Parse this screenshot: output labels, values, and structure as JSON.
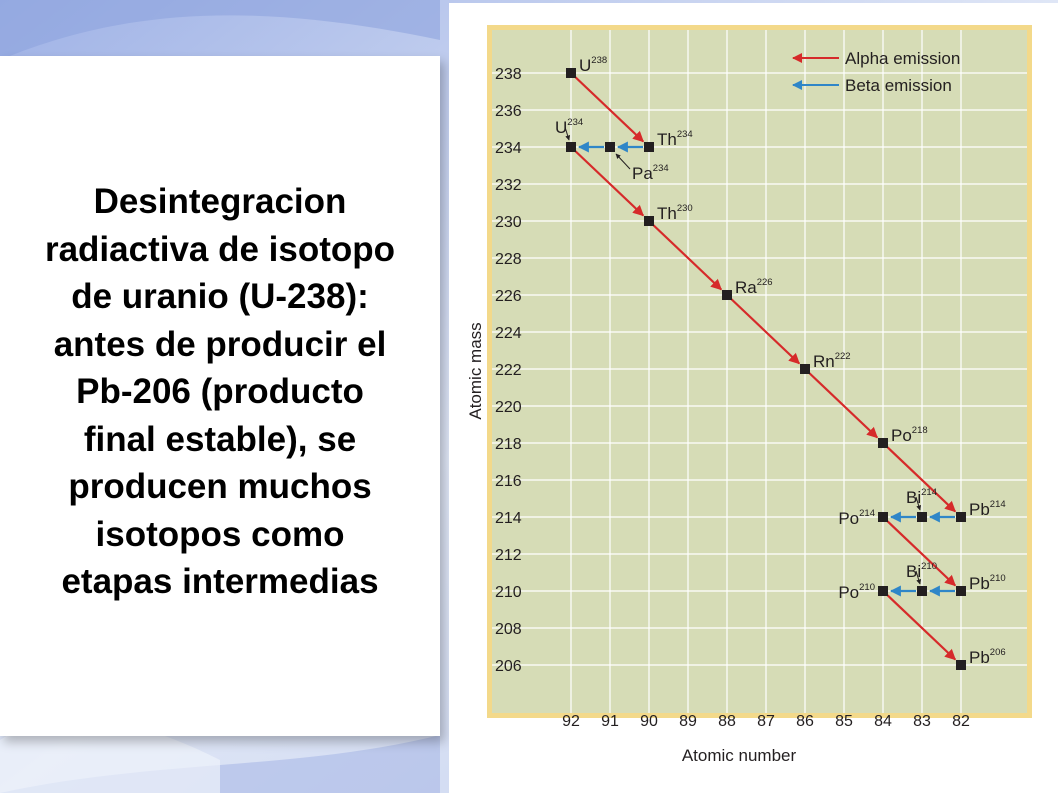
{
  "slide_text": {
    "lines": [
      "Desintegracion",
      "radiactiva de isotopo",
      "de uranio (U-238):",
      "antes de producir el",
      "Pb-206 (producto",
      "final estable), se",
      "producen muchos",
      "isotopos como",
      "etapas intermedias"
    ]
  },
  "diagram": {
    "y_axis_label": "Atomic mass",
    "x_axis_label": "Atomic number",
    "y_ticks": [
      "238",
      "236",
      "234",
      "232",
      "230",
      "228",
      "226",
      "224",
      "222",
      "220",
      "218",
      "216",
      "214",
      "212",
      "210",
      "208",
      "206"
    ],
    "x_ticks": [
      "92",
      "91",
      "90",
      "89",
      "88",
      "87",
      "86",
      "85",
      "84",
      "83",
      "82"
    ],
    "legend": {
      "alpha": "Alpha emission",
      "beta": "Beta emission"
    },
    "colors": {
      "alpha": "#d62a2a",
      "beta": "#2f86c8",
      "plot_bg": "#d6dcb6",
      "grid": "#ffffff",
      "node": "#231f20",
      "frame": "#f3d98a"
    },
    "nuclides": [
      {
        "id": "u238",
        "z": 92,
        "a": 238,
        "symbol": "U",
        "mass": "238",
        "label_side": "right"
      },
      {
        "id": "th234",
        "z": 90,
        "a": 234,
        "symbol": "Th",
        "mass": "234",
        "label_side": "right"
      },
      {
        "id": "pa234",
        "z": 91,
        "a": 234,
        "symbol": "Pa",
        "mass": "234",
        "label_side": "below"
      },
      {
        "id": "u234",
        "z": 92,
        "a": 234,
        "symbol": "U",
        "mass": "234",
        "label_side": "above"
      },
      {
        "id": "th230",
        "z": 90,
        "a": 230,
        "symbol": "Th",
        "mass": "230",
        "label_side": "right"
      },
      {
        "id": "ra226",
        "z": 88,
        "a": 226,
        "symbol": "Ra",
        "mass": "226",
        "label_side": "right"
      },
      {
        "id": "rn222",
        "z": 86,
        "a": 222,
        "symbol": "Rn",
        "mass": "222",
        "label_side": "right"
      },
      {
        "id": "po218",
        "z": 84,
        "a": 218,
        "symbol": "Po",
        "mass": "218",
        "label_side": "right"
      },
      {
        "id": "pb214",
        "z": 82,
        "a": 214,
        "symbol": "Pb",
        "mass": "214",
        "label_side": "right"
      },
      {
        "id": "bi214",
        "z": 83,
        "a": 214,
        "symbol": "Bi",
        "mass": "214",
        "label_side": "above"
      },
      {
        "id": "po214",
        "z": 84,
        "a": 214,
        "symbol": "Po",
        "mass": "214",
        "label_side": "left"
      },
      {
        "id": "pb210",
        "z": 82,
        "a": 210,
        "symbol": "Pb",
        "mass": "210",
        "label_side": "right"
      },
      {
        "id": "bi210",
        "z": 83,
        "a": 210,
        "symbol": "Bi",
        "mass": "210",
        "label_side": "above"
      },
      {
        "id": "po210",
        "z": 84,
        "a": 210,
        "symbol": "Po",
        "mass": "210",
        "label_side": "left"
      },
      {
        "id": "pb206",
        "z": 82,
        "a": 206,
        "symbol": "Pb",
        "mass": "206",
        "label_side": "right"
      }
    ],
    "decays": [
      {
        "from": "u238",
        "to": "th234",
        "type": "alpha"
      },
      {
        "from": "th234",
        "to": "pa234",
        "type": "beta"
      },
      {
        "from": "pa234",
        "to": "u234",
        "type": "beta"
      },
      {
        "from": "u234",
        "to": "th230",
        "type": "alpha"
      },
      {
        "from": "th230",
        "to": "ra226",
        "type": "alpha"
      },
      {
        "from": "ra226",
        "to": "rn222",
        "type": "alpha"
      },
      {
        "from": "rn222",
        "to": "po218",
        "type": "alpha"
      },
      {
        "from": "po218",
        "to": "pb214",
        "type": "alpha"
      },
      {
        "from": "pb214",
        "to": "bi214",
        "type": "beta"
      },
      {
        "from": "bi214",
        "to": "po214",
        "type": "beta"
      },
      {
        "from": "po214",
        "to": "pb210",
        "type": "alpha"
      },
      {
        "from": "pb210",
        "to": "bi210",
        "type": "beta"
      },
      {
        "from": "bi210",
        "to": "po210",
        "type": "beta"
      },
      {
        "from": "po210",
        "to": "pb206",
        "type": "alpha"
      }
    ]
  }
}
